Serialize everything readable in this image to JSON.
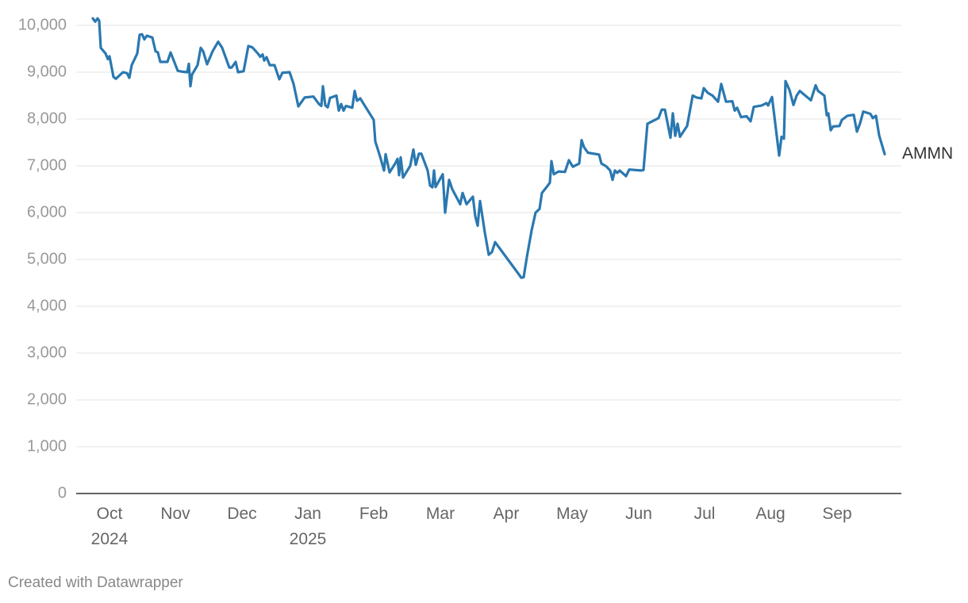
{
  "chart_data": {
    "type": "line",
    "x": [
      2024.729,
      2024.732,
      2024.735,
      2024.737,
      2024.739,
      2024.745,
      2024.748,
      2024.75,
      2024.755,
      2024.758,
      2024.767,
      2024.772,
      2024.775,
      2024.778,
      2024.785,
      2024.788,
      2024.791,
      2024.794,
      2024.797,
      2024.804,
      2024.808,
      2024.811,
      2024.814,
      2024.823,
      2024.827,
      2024.831,
      2024.836,
      2024.842,
      2024.848,
      2024.85,
      2024.852,
      2024.854,
      2024.861,
      2024.865,
      2024.868,
      2024.873,
      2024.88,
      2024.887,
      2024.892,
      2024.901,
      2024.904,
      2024.909,
      2024.912,
      2024.919,
      2024.925,
      2024.93,
      2024.937,
      2024.94,
      2024.943,
      2024.945,
      2024.948,
      2024.952,
      2024.958,
      2024.964,
      2024.968,
      2024.977,
      2024.982,
      2024.988,
      2024.996,
      2025.007,
      2025.014,
      2025.017,
      2025.019,
      2025.022,
      2025.025,
      2025.028,
      2025.036,
      2025.039,
      2025.042,
      2025.045,
      2025.048,
      2025.056,
      2025.059,
      2025.062,
      2025.066,
      2025.083,
      2025.085,
      2025.091,
      2025.096,
      2025.098,
      2025.103,
      2025.11,
      2025.113,
      2025.115,
      2025.117,
      2025.12,
      2025.129,
      2025.133,
      2025.136,
      2025.14,
      2025.143,
      2025.151,
      2025.154,
      2025.157,
      2025.159,
      2025.161,
      2025.166,
      2025.17,
      2025.173,
      2025.178,
      2025.182,
      2025.187,
      2025.192,
      2025.195,
      2025.2,
      2025.208,
      2025.211,
      2025.214,
      2025.217,
      2025.223,
      2025.228,
      2025.232,
      2025.236,
      2025.269,
      2025.272,
      2025.276,
      2025.282,
      2025.287,
      2025.292,
      2025.295,
      2025.302,
      2025.305,
      2025.307,
      2025.31,
      2025.316,
      2025.324,
      2025.329,
      2025.334,
      2025.342,
      2025.345,
      2025.348,
      2025.353,
      2025.367,
      2025.37,
      2025.376,
      2025.381,
      2025.384,
      2025.387,
      2025.39,
      2025.393,
      2025.401,
      2025.405,
      2025.42,
      2025.423,
      2025.428,
      2025.434,
      2025.442,
      2025.446,
      2025.45,
      2025.457,
      2025.46,
      2025.463,
      2025.466,
      2025.469,
      2025.478,
      2025.485,
      2025.49,
      2025.496,
      2025.499,
      2025.504,
      2025.51,
      2025.517,
      2025.521,
      2025.527,
      2025.535,
      2025.538,
      2025.541,
      2025.546,
      2025.553,
      2025.558,
      2025.562,
      2025.572,
      2025.578,
      2025.58,
      2025.585,
      2025.594,
      2025.597,
      2025.6,
      2025.602,
      2025.607,
      2025.612,
      2025.616,
      2025.62,
      2025.634,
      2025.64,
      2025.643,
      2025.651,
      2025.654,
      2025.656,
      2025.659,
      2025.662,
      2025.67,
      2025.673,
      2025.68,
      2025.688,
      2025.692,
      2025.696,
      2025.7,
      2025.709,
      2025.712,
      2025.716,
      2025.72,
      2025.727
    ],
    "series": [
      {
        "name": "AMMN",
        "color": "#2a78b0",
        "values": [
          10150,
          10080,
          10150,
          10100,
          9520,
          9400,
          9280,
          9340,
          8900,
          8860,
          9000,
          8980,
          8880,
          9150,
          9400,
          9800,
          9810,
          9700,
          9780,
          9740,
          9450,
          9420,
          9220,
          9220,
          9420,
          9250,
          9030,
          9010,
          9000,
          9180,
          8700,
          8950,
          9150,
          9520,
          9450,
          9170,
          9450,
          9650,
          9520,
          9100,
          9100,
          9220,
          9000,
          9020,
          9560,
          9530,
          9400,
          9330,
          9380,
          9250,
          9320,
          9150,
          9150,
          8850,
          8990,
          9000,
          8750,
          8270,
          8460,
          8480,
          8320,
          8280,
          8700,
          8290,
          8250,
          8450,
          8500,
          8180,
          8320,
          8180,
          8280,
          8240,
          8600,
          8390,
          8440,
          7980,
          7520,
          7200,
          6900,
          7250,
          6860,
          7050,
          7150,
          6800,
          7180,
          6750,
          7000,
          7350,
          7020,
          7260,
          7260,
          6900,
          6580,
          6540,
          6900,
          6550,
          6700,
          6820,
          6000,
          6700,
          6500,
          6340,
          6180,
          6420,
          6180,
          6340,
          5920,
          5720,
          6250,
          5580,
          5100,
          5160,
          5370,
          4610,
          4620,
          5050,
          5620,
          6000,
          6080,
          6420,
          6570,
          6640,
          7100,
          6820,
          6880,
          6870,
          7120,
          6980,
          7050,
          7550,
          7400,
          7280,
          7240,
          7050,
          6990,
          6900,
          6700,
          6900,
          6850,
          6900,
          6780,
          6920,
          6900,
          6910,
          7900,
          7950,
          8020,
          8200,
          8200,
          7600,
          8120,
          7640,
          7900,
          7620,
          7850,
          8500,
          8460,
          8440,
          8660,
          8560,
          8500,
          8370,
          8750,
          8370,
          8380,
          8180,
          8240,
          8040,
          8060,
          7950,
          8260,
          8290,
          8340,
          8290,
          8470,
          7220,
          7620,
          7580,
          8810,
          8620,
          8300,
          8500,
          8600,
          8400,
          8720,
          8600,
          8500,
          8080,
          8120,
          7760,
          7840,
          7850,
          7980,
          8070,
          8090,
          7730,
          7910,
          8160,
          8110,
          8020,
          8070,
          7650,
          7250
        ]
      }
    ],
    "xlim": [
      2024.708,
      2025.748
    ],
    "xticks": [
      {
        "value": 2024.75,
        "label": "Oct\n2024"
      },
      {
        "value": 2024.833,
        "label": "Nov"
      },
      {
        "value": 2024.917,
        "label": "Dec"
      },
      {
        "value": 2025.0,
        "label": "Jan\n2025"
      },
      {
        "value": 2025.083,
        "label": "Feb"
      },
      {
        "value": 2025.167,
        "label": "Mar"
      },
      {
        "value": 2025.25,
        "label": "Apr"
      },
      {
        "value": 2025.333,
        "label": "May"
      },
      {
        "value": 2025.417,
        "label": "Jun"
      },
      {
        "value": 2025.5,
        "label": "Jul"
      },
      {
        "value": 2025.583,
        "label": "Aug"
      },
      {
        "value": 2025.667,
        "label": "Sep"
      }
    ],
    "ylim": [
      0,
      10000
    ],
    "yticks": [
      0,
      {
        "value": 1000,
        "label": "1,000"
      },
      {
        "value": 2000,
        "label": "2,000"
      },
      {
        "value": 3000,
        "label": "3,000"
      },
      {
        "value": 4000,
        "label": "4,000"
      },
      {
        "value": 5000,
        "label": "5,000"
      },
      {
        "value": 6000,
        "label": "6,000"
      },
      {
        "value": 7000,
        "label": "7,000"
      },
      {
        "value": 8000,
        "label": "8,000"
      },
      {
        "value": 9000,
        "label": "9,000"
      },
      {
        "value": 10000,
        "label": "10,000"
      }
    ],
    "grid": true,
    "footer": "Created with Datawrapper"
  }
}
